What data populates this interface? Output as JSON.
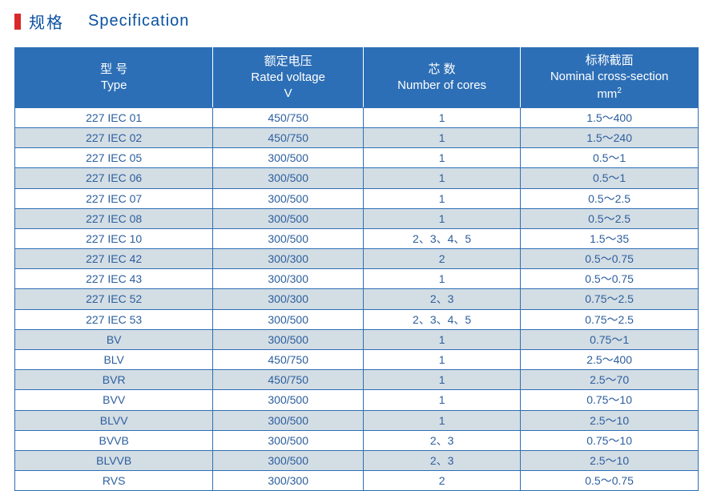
{
  "title": {
    "cn": "规格",
    "en": "Specification"
  },
  "colors": {
    "header_bg": "#2d6fb6",
    "header_text": "#ffffff",
    "border": "#2d6fb6",
    "row_even_bg": "#ffffff",
    "row_odd_bg": "#d3dde4",
    "cell_text": "#2c5f9e",
    "title_text": "#0a51a1",
    "accent_bar": "#d9282a"
  },
  "table": {
    "column_widths_pct": [
      29,
      22,
      23,
      26
    ],
    "columns": [
      {
        "cn": "型  号",
        "en": "Type"
      },
      {
        "cn": "额定电压",
        "en": "Rated voltage",
        "unit": "V"
      },
      {
        "cn": "芯  数",
        "en": "Number of cores"
      },
      {
        "cn": "标称截面",
        "en": "Nominal cross-section",
        "unit": "mm",
        "unit_sup": "2"
      }
    ],
    "rows": [
      [
        "227 IEC 01",
        "450/750",
        "1",
        "1.5～400"
      ],
      [
        "227 IEC 02",
        "450/750",
        "1",
        "1.5～240"
      ],
      [
        "227 IEC 05",
        "300/500",
        "1",
        "0.5～1"
      ],
      [
        "227 IEC 06",
        "300/500",
        "1",
        "0.5～1"
      ],
      [
        "227 IEC 07",
        "300/500",
        "1",
        "0.5～2.5"
      ],
      [
        "227 IEC 08",
        "300/500",
        "1",
        "0.5～2.5"
      ],
      [
        "227 IEC 10",
        "300/500",
        "2、3、4、5",
        "1.5～35"
      ],
      [
        "227 IEC 42",
        "300/300",
        "2",
        "0.5～0.75"
      ],
      [
        "227 IEC 43",
        "300/300",
        "1",
        "0.5～0.75"
      ],
      [
        "227 IEC 52",
        "300/300",
        "2、3",
        "0.75～2.5"
      ],
      [
        "227 IEC 53",
        "300/500",
        "2、3、4、5",
        "0.75～2.5"
      ],
      [
        "BV",
        "300/500",
        "1",
        "0.75～1"
      ],
      [
        "BLV",
        "450/750",
        "1",
        "2.5～400"
      ],
      [
        "BVR",
        "450/750",
        "1",
        "2.5～70"
      ],
      [
        "BVV",
        "300/500",
        "1",
        "0.75～10"
      ],
      [
        "BLVV",
        "300/500",
        "1",
        "2.5～10"
      ],
      [
        "BVVB",
        "300/500",
        "2、3",
        "0.75～10"
      ],
      [
        "BLVVB",
        "300/500",
        "2、3",
        "2.5～10"
      ],
      [
        "RVS",
        "300/300",
        "2",
        "0.5～0.75"
      ]
    ]
  }
}
